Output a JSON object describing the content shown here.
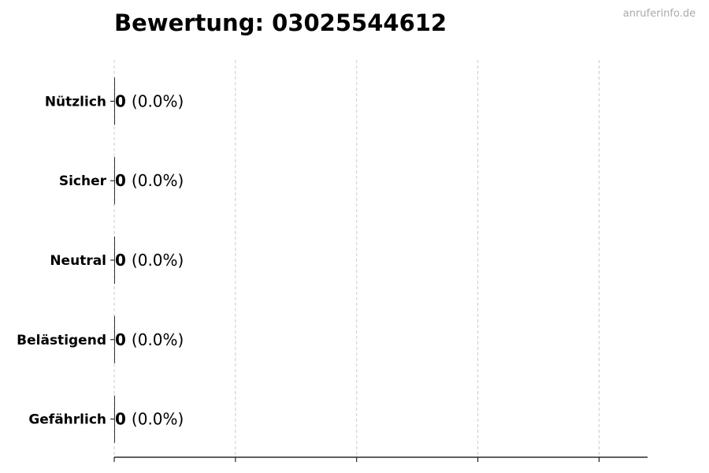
{
  "chart_data": {
    "type": "bar",
    "orientation": "horizontal",
    "title": "Bewertung: 03025544612",
    "categories": [
      "Nützlich",
      "Sicher",
      "Neutral",
      "Belästigend",
      "Gefährlich"
    ],
    "values": [
      0,
      0,
      0,
      0,
      0
    ],
    "value_labels": [
      "0",
      "0",
      "0",
      "0",
      "0"
    ],
    "percent_labels": [
      "(0.0%)",
      "(0.0%)",
      "(0.0%)",
      "(0.0%)",
      "(0.0%)"
    ],
    "xlim": [
      0,
      4.4
    ],
    "xticks": [
      0,
      1,
      2,
      3,
      4
    ],
    "xtick_labels_shown": false,
    "grid": "vertical dashed",
    "bar_color": "#333333",
    "xlabel": "",
    "ylabel": ""
  },
  "watermark": "anruferinfo.de"
}
